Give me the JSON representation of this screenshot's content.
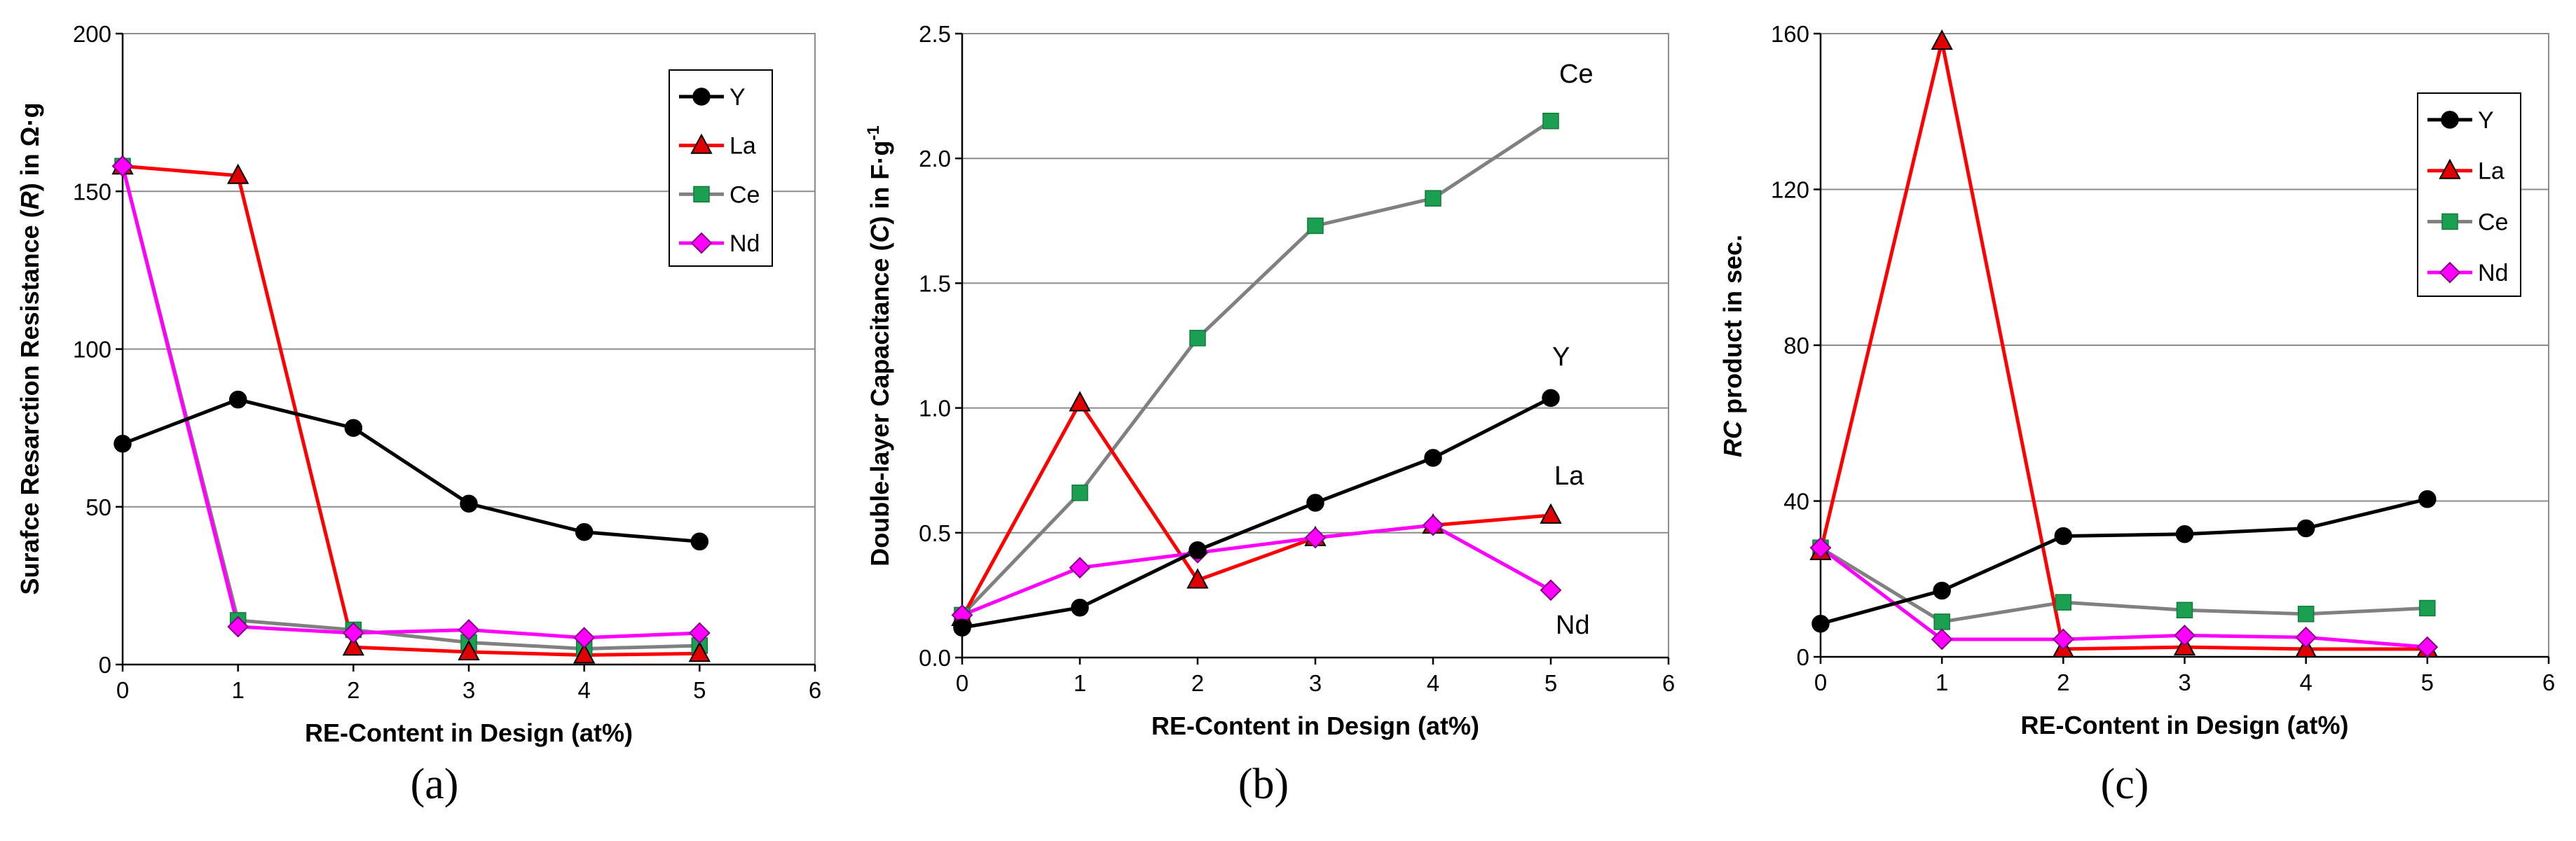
{
  "chart_data": [
    {
      "type": "line",
      "panel_label": "(a)",
      "xlabel": "RE-Content in Design (at%)",
      "ylabel": {
        "prefix": "Surafce Resarction Resistance (",
        "symbol": "R",
        "suffix": ")  in Ω·g"
      },
      "xlim": [
        0,
        6
      ],
      "ylim": [
        0,
        200
      ],
      "xticks": [
        0,
        1,
        2,
        3,
        4,
        5,
        6
      ],
      "yticks": [
        0,
        50,
        100,
        150,
        200
      ],
      "grid": true,
      "legend": "top-right",
      "x": [
        0,
        1,
        2,
        3,
        4,
        5
      ],
      "series": [
        {
          "name": "Y",
          "values": [
            70,
            84,
            75,
            51,
            42,
            39
          ]
        },
        {
          "name": "La",
          "values": [
            158,
            155,
            5.5,
            4,
            3,
            3.5
          ]
        },
        {
          "name": "Ce",
          "values": [
            158,
            14,
            11,
            7,
            5,
            6
          ]
        },
        {
          "name": "Nd",
          "values": [
            158,
            12,
            10,
            11,
            8.5,
            10
          ]
        }
      ],
      "annotations": []
    },
    {
      "type": "line",
      "panel_label": "(b)",
      "xlabel": "RE-Content in Design (at%)",
      "ylabel": {
        "prefix": "Double-layer Capacitance (",
        "symbol": "C",
        "suffix": ")  in F·g",
        "sup": "-1"
      },
      "xlim": [
        0,
        6
      ],
      "ylim": [
        0,
        2.5
      ],
      "xticks": [
        0,
        1,
        2,
        3,
        4,
        5,
        6
      ],
      "yticks": [
        "0.0",
        "0.5",
        "1.0",
        "1.5",
        "2.0",
        "2.5"
      ],
      "grid": true,
      "legend": "none",
      "x": [
        0,
        1,
        2,
        3,
        4,
        5
      ],
      "series": [
        {
          "name": "Y",
          "values": [
            0.12,
            0.2,
            0.43,
            0.62,
            0.8,
            1.04
          ]
        },
        {
          "name": "La",
          "values": [
            0.16,
            1.02,
            0.31,
            0.48,
            0.53,
            0.57
          ]
        },
        {
          "name": "Ce",
          "values": [
            0.17,
            0.66,
            1.28,
            1.73,
            1.84,
            2.15
          ]
        },
        {
          "name": "Nd",
          "values": [
            0.17,
            0.36,
            0.42,
            0.48,
            0.53,
            0.27
          ]
        }
      ],
      "annotations": [
        {
          "text": "Ce",
          "series": "Ce"
        },
        {
          "text": "Y",
          "series": "Y"
        },
        {
          "text": "La",
          "series": "La"
        },
        {
          "text": "Nd",
          "series": "Nd"
        }
      ]
    },
    {
      "type": "line",
      "panel_label": "(c)",
      "xlabel": "RE-Content in Design (at%)",
      "ylabel": {
        "prefix": "",
        "symbol": "RC",
        "suffix": " product in sec."
      },
      "xlim": [
        0,
        6
      ],
      "ylim": [
        0,
        160
      ],
      "xticks": [
        0,
        1,
        2,
        3,
        4,
        5,
        6
      ],
      "yticks": [
        0,
        40,
        80,
        120,
        160
      ],
      "grid": true,
      "legend": "top-right",
      "x": [
        0,
        1,
        2,
        3,
        4,
        5
      ],
      "series": [
        {
          "name": "Y",
          "values": [
            8.5,
            17,
            31,
            31.5,
            33,
            40.5
          ]
        },
        {
          "name": "La",
          "values": [
            27,
            158,
            2,
            2.5,
            2,
            2
          ]
        },
        {
          "name": "Ce",
          "values": [
            28,
            9,
            14,
            12,
            11,
            12.5
          ]
        },
        {
          "name": "Nd",
          "values": [
            28,
            4.5,
            4.5,
            5.5,
            5,
            2.5
          ]
        }
      ],
      "annotations": []
    }
  ],
  "styles": {
    "Y": {
      "color": "#000000",
      "marker": "circle",
      "marker_fill": "#000000"
    },
    "La": {
      "color": "#ff0000",
      "marker": "triangle",
      "marker_fill": "#e00000"
    },
    "Ce": {
      "color": "#808080",
      "marker": "square",
      "marker_fill": "#1aa050"
    },
    "Nd": {
      "color": "#ff00ff",
      "marker": "diamond",
      "marker_fill": "#ff00ff"
    }
  }
}
